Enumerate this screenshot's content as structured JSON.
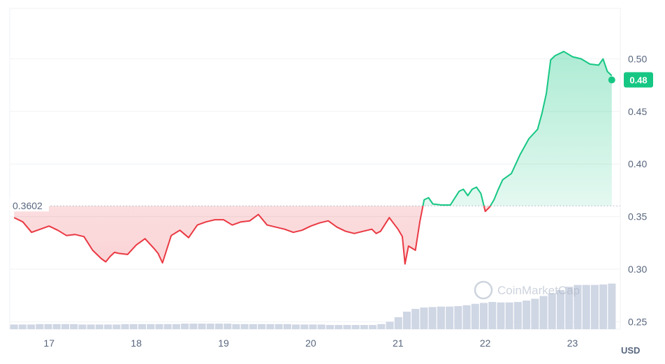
{
  "chart_data": {
    "type": "line",
    "title": "",
    "y_ticks": [
      "0.25",
      "0.30",
      "0.35",
      "0.40",
      "0.45",
      "0.50"
    ],
    "y_tick_values": [
      0.25,
      0.3,
      0.35,
      0.4,
      0.45,
      0.5
    ],
    "x_ticks": [
      "17",
      "18",
      "19",
      "20",
      "21",
      "22",
      "23"
    ],
    "x_tick_values": [
      17,
      18,
      19,
      20,
      21,
      22,
      23
    ],
    "xlim": [
      16.55,
      23.5
    ],
    "ylim": [
      0.243,
      0.548
    ],
    "unit": "USD",
    "baseline": {
      "value": 0.3602,
      "label": "0.3602"
    },
    "current": {
      "value": 0.48,
      "label": "0.48"
    },
    "watermark": "CoinMarketCap",
    "colors": {
      "up": "#16c784",
      "down": "#ea3943",
      "grid": "#eff2f5",
      "volume": "#cfd6e4",
      "axis_text": "#58667e"
    },
    "series": [
      {
        "x": [
          16.6,
          16.7,
          16.8,
          16.9,
          17.0,
          17.1,
          17.2,
          17.3,
          17.4,
          17.5,
          17.6,
          17.65,
          17.7,
          17.75,
          17.8,
          17.9,
          18.0,
          18.1,
          18.2,
          18.25,
          18.3,
          18.4,
          18.5,
          18.6,
          18.7,
          18.8,
          18.9,
          19.0,
          19.1,
          19.2,
          19.3,
          19.4,
          19.5,
          19.6,
          19.7,
          19.8,
          19.9,
          20.0,
          20.1,
          20.2,
          20.3,
          20.4,
          20.5,
          20.6,
          20.7,
          20.75,
          20.8,
          20.9,
          21.0,
          21.05,
          21.08,
          21.12,
          21.2,
          21.25,
          21.3,
          21.35,
          21.4,
          21.5,
          21.6,
          21.7,
          21.75,
          21.8,
          21.85,
          21.9,
          21.95,
          22.0,
          22.05,
          22.1,
          22.15,
          22.2,
          22.3,
          22.4,
          22.5,
          22.6,
          22.65,
          22.7,
          22.75,
          22.8,
          22.9,
          23.0,
          23.1,
          23.2,
          23.3,
          23.35,
          23.4,
          23.45
        ],
        "y": [
          0.349,
          0.345,
          0.335,
          0.338,
          0.341,
          0.337,
          0.332,
          0.333,
          0.331,
          0.318,
          0.31,
          0.307,
          0.312,
          0.316,
          0.315,
          0.314,
          0.323,
          0.329,
          0.32,
          0.315,
          0.306,
          0.332,
          0.337,
          0.33,
          0.342,
          0.345,
          0.347,
          0.347,
          0.342,
          0.345,
          0.346,
          0.352,
          0.342,
          0.34,
          0.338,
          0.335,
          0.337,
          0.341,
          0.344,
          0.346,
          0.34,
          0.336,
          0.334,
          0.336,
          0.338,
          0.334,
          0.336,
          0.349,
          0.338,
          0.331,
          0.305,
          0.322,
          0.318,
          0.345,
          0.366,
          0.368,
          0.362,
          0.361,
          0.361,
          0.374,
          0.376,
          0.37,
          0.376,
          0.378,
          0.372,
          0.355,
          0.359,
          0.366,
          0.376,
          0.385,
          0.391,
          0.409,
          0.424,
          0.433,
          0.448,
          0.467,
          0.499,
          0.503,
          0.507,
          0.502,
          0.5,
          0.495,
          0.494,
          0.5,
          0.488,
          0.484
        ]
      }
    ],
    "volume": [
      10,
      10,
      10,
      11,
      11,
      11,
      11,
      11,
      10,
      10,
      10,
      10,
      10,
      11,
      11,
      11,
      11,
      11,
      11,
      11,
      12,
      12,
      12,
      12,
      12,
      12,
      11,
      11,
      11,
      11,
      11,
      11,
      11,
      10,
      10,
      10,
      10,
      9,
      9,
      9,
      9,
      9,
      9,
      11,
      16,
      26,
      38,
      44,
      47,
      48,
      49,
      49,
      50,
      52,
      55,
      57,
      59,
      58,
      58,
      59,
      62,
      66,
      72,
      78,
      85,
      92,
      96,
      96,
      96,
      97,
      99
    ]
  }
}
